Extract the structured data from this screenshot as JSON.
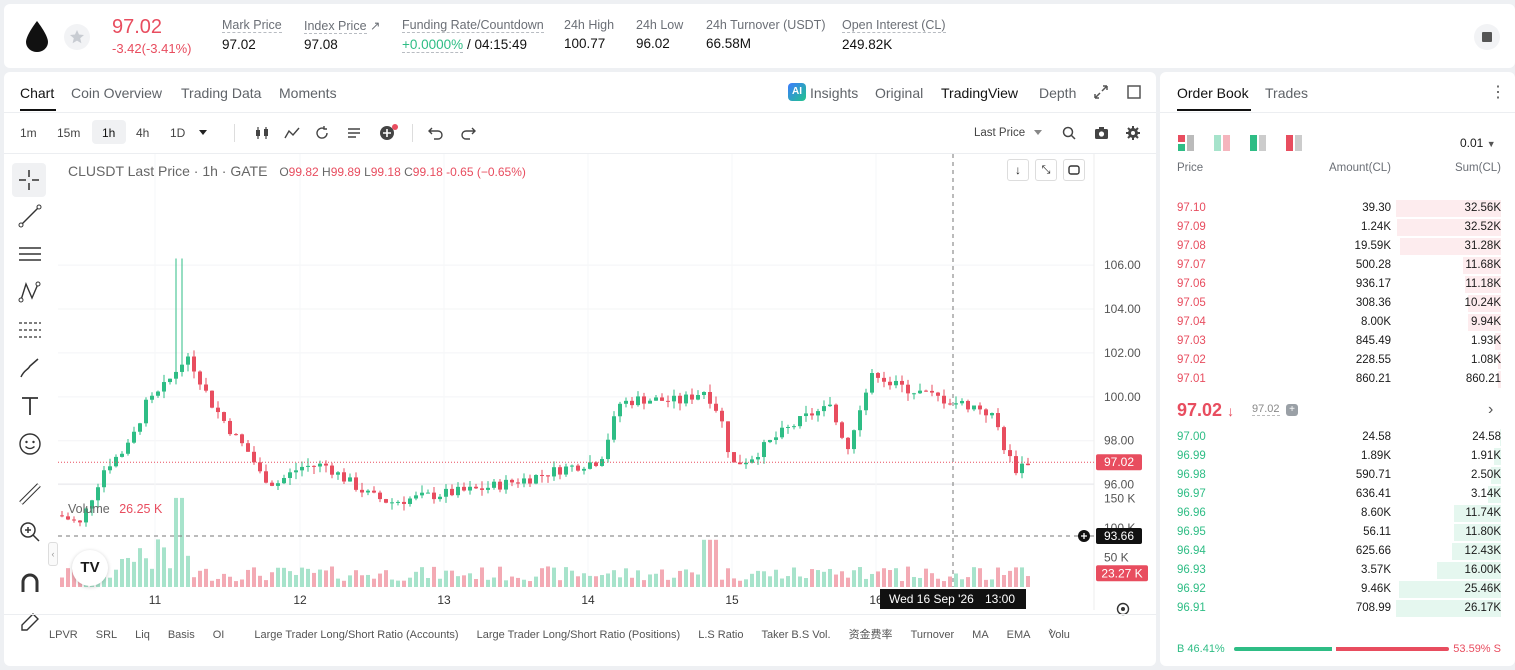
{
  "ticker": {
    "price": "97.02",
    "change": "-3.42(-3.41%)",
    "stats": [
      {
        "label": "Mark Price",
        "value": "97.02"
      },
      {
        "label": "Index Price",
        "value": "97.08"
      },
      {
        "label": "Funding Rate/Countdown",
        "value_a": "+0.0000%",
        "value_b": "/ 04:15:49"
      },
      {
        "label": "24h High",
        "value": "100.77"
      },
      {
        "label": "24h Low",
        "value": "96.02"
      },
      {
        "label": "24h Turnover (USDT)",
        "value": "66.58M"
      },
      {
        "label": "Open Interest (CL)",
        "value": "249.82K"
      }
    ]
  },
  "tabs": [
    "Chart",
    "Coin Overview",
    "Trading Data",
    "Moments"
  ],
  "views": {
    "insights": "Insights",
    "original": "Original",
    "tradingview": "TradingView",
    "depth": "Depth"
  },
  "intervals": [
    "1m",
    "15m",
    "1h",
    "4h",
    "1D"
  ],
  "price_source": "Last Price",
  "legend": {
    "symbol": "CLUSDT Last Price · 1h · GATE",
    "o": "99.82",
    "h": "99.89",
    "l": "99.18",
    "c": "99.18",
    "chg": "-0.65 (−0.65%)"
  },
  "volume_legend": {
    "label": "Volume",
    "value": "26.25 K"
  },
  "price_axis": [
    "106.00",
    "104.00",
    "102.00",
    "100.00",
    "98.00",
    "96.00"
  ],
  "vol_axis": [
    "150 K",
    "100 K",
    "50 K"
  ],
  "x_axis": [
    "11",
    "12",
    "13",
    "14",
    "15",
    "16"
  ],
  "last_price_tag": "97.02",
  "crosshair_tag": "93.66",
  "vol_tag": "23.27 K",
  "time_tag": "Wed 16 Sep '26",
  "time_tag2": "13:00",
  "bottom_tabs": [
    "LPVR",
    "SRL",
    "Liq",
    "Basis",
    "OI",
    "Large Trader Long/Short Ratio (Accounts)",
    "Large Trader Long/Short Ratio (Positions)",
    "L.S Ratio",
    "Taker B.S Vol.",
    "资金费率",
    "Turnover",
    "MA",
    "EMA",
    "Volu"
  ],
  "orderbook": {
    "tabs": [
      "Order Book",
      "Trades"
    ],
    "precision": "0.01",
    "headers": [
      "Price",
      "Amount(CL)",
      "Sum(CL)"
    ],
    "asks": [
      [
        "97.10",
        "39.30",
        "32.56K",
        1.0
      ],
      [
        "97.09",
        "1.24K",
        "32.52K",
        0.99
      ],
      [
        "97.08",
        "19.59K",
        "31.28K",
        0.96
      ],
      [
        "97.07",
        "500.28",
        "11.68K",
        0.36
      ],
      [
        "97.06",
        "936.17",
        "11.18K",
        0.34
      ],
      [
        "97.05",
        "308.36",
        "10.24K",
        0.31
      ],
      [
        "97.04",
        "8.00K",
        "9.94K",
        0.31
      ],
      [
        "97.03",
        "845.49",
        "1.93K",
        0.06
      ],
      [
        "97.02",
        "228.55",
        "1.08K",
        0.03
      ],
      [
        "97.01",
        "860.21",
        "860.21",
        0.026
      ]
    ],
    "mid": "97.02",
    "mid_mark": "97.02",
    "bids": [
      [
        "97.00",
        "24.58",
        "24.58",
        0.001
      ],
      [
        "96.99",
        "1.89K",
        "1.91K",
        0.07
      ],
      [
        "96.98",
        "590.71",
        "2.50K",
        0.1
      ],
      [
        "96.97",
        "636.41",
        "3.14K",
        0.12
      ],
      [
        "96.96",
        "8.60K",
        "11.74K",
        0.45
      ],
      [
        "96.95",
        "56.11",
        "11.80K",
        0.45
      ],
      [
        "96.94",
        "625.66",
        "12.43K",
        0.47
      ],
      [
        "96.93",
        "3.57K",
        "16.00K",
        0.61
      ],
      [
        "96.92",
        "9.46K",
        "25.46K",
        0.97
      ],
      [
        "96.91",
        "708.99",
        "26.17K",
        1.0
      ]
    ],
    "buy_pct": "46.41%",
    "sell_pct": "53.59%",
    "buy_label": "B",
    "sell_label": "S",
    "buy_ratio": 0.4641
  },
  "colors": {
    "up": "#2ebd85",
    "down": "#e84d5f"
  }
}
